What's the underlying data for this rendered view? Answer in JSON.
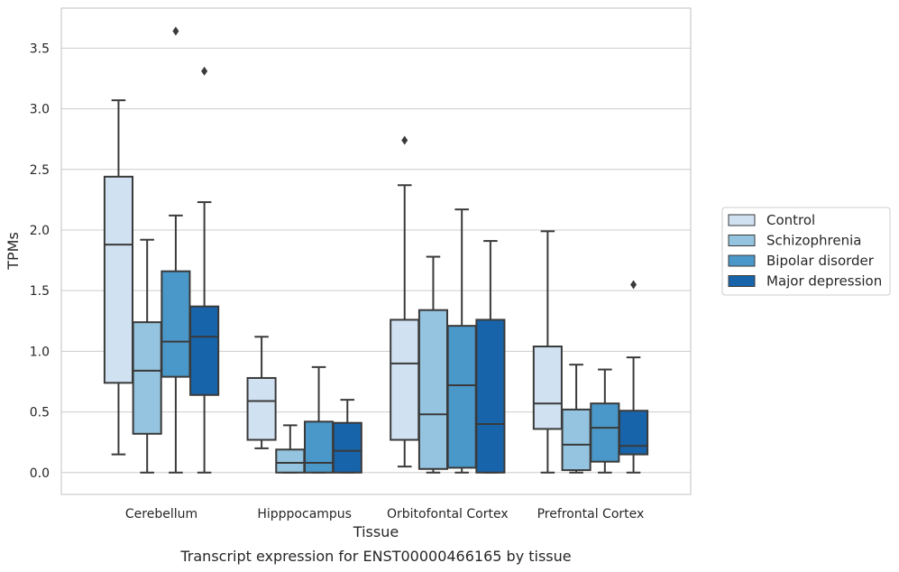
{
  "caption": "Transcript expression for ENST00000466165 by tissue",
  "chart_data": {
    "type": "box",
    "title": "",
    "xlabel": "Tissue",
    "ylabel": "TPMs",
    "ylim": [
      -0.18,
      3.83
    ],
    "yticks": [
      0.0,
      0.5,
      1.0,
      1.5,
      2.0,
      2.5,
      3.0,
      3.5
    ],
    "ytick_labels": [
      "0.0",
      "0.5",
      "1.0",
      "1.5",
      "2.0",
      "2.5",
      "3.0",
      "3.5"
    ],
    "grid": "horizontal",
    "legend_position": "right",
    "categories": [
      "Cerebellum",
      "Hipppocampus",
      "Orbitofontal Cortex",
      "Prefrontal Cortex"
    ],
    "series": [
      {
        "name": "Control",
        "color": "#d0e1f2",
        "boxes": [
          {
            "whisker_low": 0.15,
            "q1": 0.74,
            "median": 1.88,
            "q3": 2.44,
            "whisker_high": 3.07,
            "outliers": []
          },
          {
            "whisker_low": 0.2,
            "q1": 0.27,
            "median": 0.59,
            "q3": 0.78,
            "whisker_high": 1.12,
            "outliers": []
          },
          {
            "whisker_low": 0.05,
            "q1": 0.27,
            "median": 0.9,
            "q3": 1.26,
            "whisker_high": 2.37,
            "outliers": [
              2.74
            ]
          },
          {
            "whisker_low": 0.0,
            "q1": 0.36,
            "median": 0.57,
            "q3": 1.04,
            "whisker_high": 1.99,
            "outliers": []
          }
        ]
      },
      {
        "name": "Schizophrenia",
        "color": "#94c4df",
        "boxes": [
          {
            "whisker_low": 0.0,
            "q1": 0.32,
            "median": 0.84,
            "q3": 1.24,
            "whisker_high": 1.92,
            "outliers": []
          },
          {
            "whisker_low": 0.0,
            "q1": 0.0,
            "median": 0.08,
            "q3": 0.19,
            "whisker_high": 0.39,
            "outliers": []
          },
          {
            "whisker_low": 0.0,
            "q1": 0.03,
            "median": 0.48,
            "q3": 1.34,
            "whisker_high": 1.78,
            "outliers": []
          },
          {
            "whisker_low": 0.0,
            "q1": 0.02,
            "median": 0.23,
            "q3": 0.52,
            "whisker_high": 0.89,
            "outliers": []
          }
        ]
      },
      {
        "name": "Bipolar disorder",
        "color": "#4a98c9",
        "boxes": [
          {
            "whisker_low": 0.0,
            "q1": 0.79,
            "median": 1.08,
            "q3": 1.66,
            "whisker_high": 2.12,
            "outliers": [
              3.64
            ]
          },
          {
            "whisker_low": 0.0,
            "q1": 0.0,
            "median": 0.08,
            "q3": 0.42,
            "whisker_high": 0.87,
            "outliers": []
          },
          {
            "whisker_low": 0.0,
            "q1": 0.04,
            "median": 0.72,
            "q3": 1.21,
            "whisker_high": 2.17,
            "outliers": []
          },
          {
            "whisker_low": 0.0,
            "q1": 0.09,
            "median": 0.37,
            "q3": 0.57,
            "whisker_high": 0.85,
            "outliers": []
          }
        ]
      },
      {
        "name": "Major depression",
        "color": "#1764ab",
        "boxes": [
          {
            "whisker_low": 0.0,
            "q1": 0.64,
            "median": 1.12,
            "q3": 1.37,
            "whisker_high": 2.23,
            "outliers": [
              3.31
            ]
          },
          {
            "whisker_low": 0.0,
            "q1": 0.0,
            "median": 0.18,
            "q3": 0.41,
            "whisker_high": 0.6,
            "outliers": []
          },
          {
            "whisker_low": 0.0,
            "q1": 0.0,
            "median": 0.4,
            "q3": 1.26,
            "whisker_high": 1.91,
            "outliers": []
          },
          {
            "whisker_low": 0.0,
            "q1": 0.15,
            "median": 0.22,
            "q3": 0.51,
            "whisker_high": 0.95,
            "outliers": [
              1.55
            ]
          }
        ]
      }
    ]
  }
}
